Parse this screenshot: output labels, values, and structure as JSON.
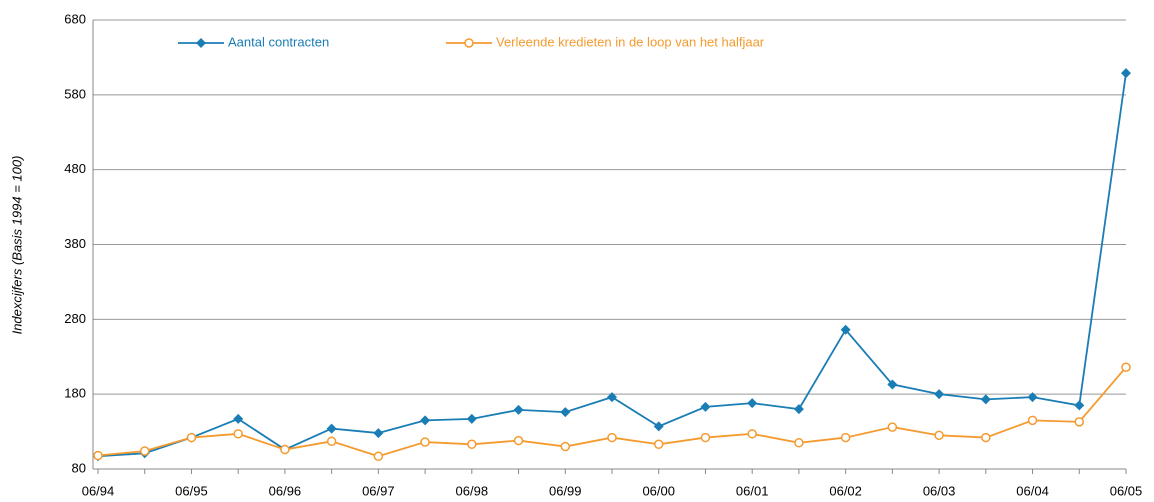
{
  "chart_data": {
    "type": "line",
    "ylabel": "Indexcijfers (Basis 1994 = 100)",
    "categories": [
      "06/94",
      null,
      "06/95",
      null,
      "06/96",
      null,
      "06/97",
      null,
      "06/98",
      null,
      "06/99",
      null,
      "06/00",
      null,
      "06/01",
      null,
      "06/02",
      null,
      "06/03",
      null,
      "06/04",
      null,
      "06/05"
    ],
    "series": [
      {
        "name": "Aantal contracten",
        "color": "#1a7db5",
        "marker": "diamond",
        "values": [
          97,
          101,
          122,
          147,
          106,
          134,
          128,
          145,
          147,
          159,
          156,
          176,
          137,
          163,
          168,
          160,
          266,
          193,
          180,
          173,
          176,
          165,
          609
        ]
      },
      {
        "name": "Verleende kredieten in de loop van het halfjaar",
        "color": "#f59a2e",
        "marker": "circle",
        "values": [
          98,
          104,
          122,
          127,
          106,
          117,
          97,
          116,
          113,
          118,
          110,
          122,
          113,
          122,
          127,
          115,
          122,
          136,
          125,
          122,
          145,
          143,
          216
        ]
      }
    ],
    "ylim": [
      80,
      680
    ],
    "yticks": [
      80,
      180,
      280,
      380,
      480,
      580,
      680
    ],
    "grid": true,
    "legend": "top"
  }
}
